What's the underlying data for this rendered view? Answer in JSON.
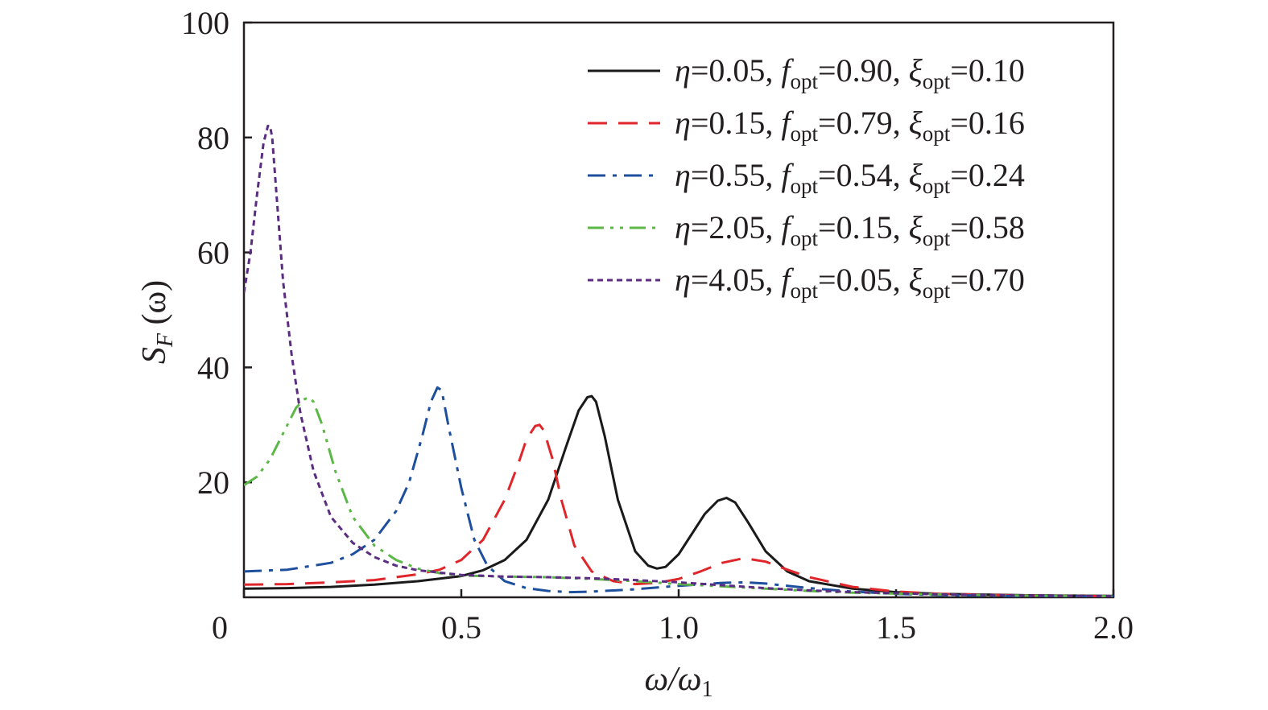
{
  "chart_data": {
    "type": "line",
    "xlabel": {
      "main": "ω/ω",
      "sub": "1"
    },
    "ylabel": {
      "main": "S",
      "sub": "F",
      "tail": " (ω)"
    },
    "xlim": [
      0,
      2.0
    ],
    "ylim": [
      0,
      100
    ],
    "x_ticks": [
      {
        "value": 0,
        "label": "0"
      },
      {
        "value": 0.5,
        "label": "0.5"
      },
      {
        "value": 1.0,
        "label": "1.0"
      },
      {
        "value": 1.5,
        "label": "1.5"
      },
      {
        "value": 2.0,
        "label": "2.0"
      }
    ],
    "y_ticks": [
      {
        "value": 20,
        "label": "20"
      },
      {
        "value": 40,
        "label": "40"
      },
      {
        "value": 60,
        "label": "60"
      },
      {
        "value": 80,
        "label": "80"
      },
      {
        "value": 100,
        "label": "100"
      }
    ],
    "grid": false,
    "legend_position": "top-right",
    "series": [
      {
        "eta": "0.05",
        "f_opt": "0.90",
        "xi_opt": "0.10",
        "color": "#1a1a1a",
        "dash": "solid",
        "x": [
          0,
          0.1,
          0.2,
          0.3,
          0.4,
          0.5,
          0.55,
          0.6,
          0.65,
          0.7,
          0.74,
          0.77,
          0.79,
          0.8,
          0.81,
          0.83,
          0.86,
          0.9,
          0.93,
          0.95,
          0.97,
          1.0,
          1.03,
          1.06,
          1.09,
          1.11,
          1.13,
          1.16,
          1.2,
          1.25,
          1.3,
          1.4,
          1.5,
          1.6,
          1.8,
          2.0
        ],
        "y": [
          1.5,
          1.6,
          1.8,
          2.2,
          2.8,
          3.7,
          4.7,
          6.5,
          10.0,
          17.0,
          26.0,
          32.5,
          34.8,
          35.0,
          34.0,
          28.0,
          17.0,
          8.0,
          5.5,
          5.0,
          5.3,
          7.5,
          11.0,
          14.5,
          16.8,
          17.3,
          16.5,
          13.0,
          8.0,
          4.5,
          2.8,
          1.5,
          0.9,
          0.6,
          0.35,
          0.25
        ]
      },
      {
        "eta": "0.15",
        "f_opt": "0.79",
        "xi_opt": "0.16",
        "color": "#e0262b",
        "dash": "24 14",
        "x": [
          0,
          0.1,
          0.2,
          0.3,
          0.4,
          0.45,
          0.5,
          0.55,
          0.6,
          0.63,
          0.65,
          0.67,
          0.68,
          0.69,
          0.71,
          0.73,
          0.76,
          0.8,
          0.85,
          0.9,
          0.95,
          1.0,
          1.05,
          1.1,
          1.15,
          1.2,
          1.25,
          1.3,
          1.4,
          1.5,
          1.6,
          1.8,
          2.0
        ],
        "y": [
          2.2,
          2.3,
          2.6,
          3.0,
          4.0,
          4.8,
          6.5,
          10.0,
          17.0,
          23.0,
          27.5,
          29.8,
          30.0,
          29.0,
          24.0,
          17.0,
          9.0,
          4.5,
          2.8,
          2.3,
          2.5,
          3.2,
          4.5,
          6.0,
          6.8,
          6.2,
          4.8,
          3.5,
          1.8,
          1.0,
          0.6,
          0.3,
          0.2
        ]
      },
      {
        "eta": "0.55",
        "f_opt": "0.54",
        "xi_opt": "0.24",
        "color": "#1d4f9c",
        "dash": "22 9 5 9",
        "x": [
          0,
          0.1,
          0.2,
          0.25,
          0.3,
          0.35,
          0.38,
          0.41,
          0.43,
          0.445,
          0.455,
          0.47,
          0.5,
          0.53,
          0.56,
          0.6,
          0.65,
          0.7,
          0.75,
          0.8,
          0.9,
          1.0,
          1.1,
          1.15,
          1.2,
          1.3,
          1.4,
          1.5,
          1.6,
          1.8,
          2.0
        ],
        "y": [
          4.5,
          4.8,
          6.0,
          7.5,
          10.0,
          15.0,
          20.0,
          28.0,
          34.0,
          36.5,
          36.0,
          30.0,
          19.0,
          10.0,
          5.5,
          2.8,
          1.6,
          1.1,
          0.9,
          1.0,
          1.4,
          2.0,
          2.5,
          2.6,
          2.4,
          1.6,
          1.0,
          0.6,
          0.4,
          0.2,
          0.15
        ]
      },
      {
        "eta": "2.05",
        "f_opt": "0.15",
        "xi_opt": "0.58",
        "color": "#5cb846",
        "dash": "20 8 4 8 4 8",
        "x": [
          0,
          0.03,
          0.06,
          0.09,
          0.12,
          0.14,
          0.15,
          0.16,
          0.18,
          0.21,
          0.25,
          0.3,
          0.35,
          0.4,
          0.45,
          0.5,
          0.6,
          0.7,
          0.8,
          0.9,
          1.0,
          1.1,
          1.2,
          1.3,
          1.4,
          1.6,
          1.8,
          2.0
        ],
        "y": [
          19.5,
          21.0,
          24.0,
          28.5,
          33.0,
          34.5,
          34.8,
          34.0,
          30.0,
          22.0,
          14.0,
          9.0,
          6.5,
          5.0,
          4.2,
          3.8,
          3.6,
          3.5,
          3.2,
          2.8,
          2.3,
          1.9,
          1.5,
          1.1,
          0.8,
          0.5,
          0.3,
          0.2
        ]
      },
      {
        "eta": "4.05",
        "f_opt": "0.05",
        "xi_opt": "0.70",
        "color": "#5b2d82",
        "dash": "7 5",
        "x": [
          0,
          0.015,
          0.03,
          0.045,
          0.055,
          0.06,
          0.065,
          0.075,
          0.09,
          0.11,
          0.13,
          0.16,
          0.2,
          0.25,
          0.3,
          0.35,
          0.4,
          0.5,
          0.6,
          0.7,
          0.8,
          0.9,
          1.0,
          1.1,
          1.2,
          1.3,
          1.4,
          1.6,
          1.8,
          2.0
        ],
        "y": [
          53.0,
          60.0,
          70.0,
          79.0,
          82.0,
          82.0,
          80.0,
          70.0,
          55.0,
          42.0,
          32.0,
          22.0,
          14.0,
          9.5,
          7.0,
          5.5,
          4.7,
          3.9,
          3.6,
          3.5,
          3.3,
          3.0,
          2.6,
          2.1,
          1.6,
          1.2,
          0.9,
          0.5,
          0.3,
          0.2
        ]
      }
    ]
  }
}
